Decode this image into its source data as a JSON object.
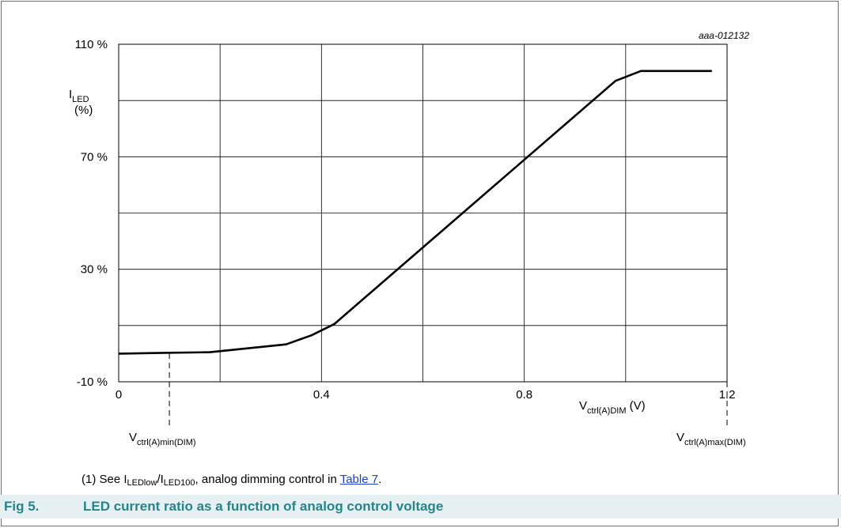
{
  "figure": {
    "code": "aaa-012132",
    "ylabel_main": "I",
    "ylabel_sub": "LED",
    "ylabel_unit": "(%)",
    "xlabel_main": "V",
    "xlabel_sub": "ctrl(A)DIM",
    "xlabel_unit": " (V)",
    "vmin_main": "V",
    "vmin_sub": "ctrl(A)min(DIM)",
    "vmax_main": "V",
    "vmax_sub": "ctrl(A)max(DIM)"
  },
  "note": {
    "prefix": "(1)  See I",
    "sub1": "LEDlow",
    "slash": "/I",
    "sub2": "LED100",
    "middle": ", analog dimming control in ",
    "link": "Table 7",
    "suffix": "."
  },
  "caption": {
    "number": "Fig 5.",
    "text": "LED current ratio as a function of analog control voltage"
  },
  "chart_data": {
    "type": "line",
    "xlim": [
      0,
      1.2
    ],
    "ylim": [
      -10,
      110
    ],
    "x_ticks": [
      0,
      0.4,
      0.8,
      1.2
    ],
    "x_tick_labels": [
      "0",
      "0.4",
      "0.8",
      "1.2"
    ],
    "y_ticks": [
      -10,
      30,
      70,
      110
    ],
    "y_tick_labels": [
      "-10 %",
      "30 %",
      "70 %",
      "110 %"
    ],
    "grid": true,
    "series": [
      {
        "x": [
          0,
          0.1,
          0.18,
          0.33,
          0.38,
          0.425,
          0.98,
          1.03,
          1.17
        ],
        "y": [
          0,
          0.3,
          0.5,
          3.3,
          6.5,
          10.5,
          97,
          100.5,
          100.5
        ]
      }
    ],
    "annotations": [
      {
        "x": 0.1,
        "label": "Vctrl(A)min(DIM)"
      },
      {
        "x": 1.2,
        "label": "Vctrl(A)max(DIM)"
      }
    ]
  }
}
